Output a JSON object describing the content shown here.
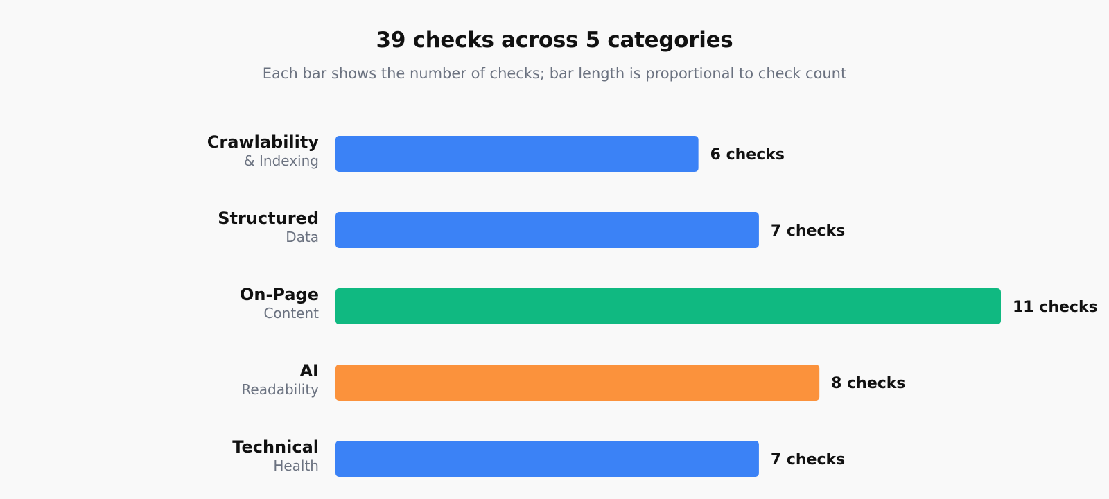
{
  "chart_data": {
    "type": "bar",
    "orientation": "horizontal",
    "title": "39 checks across 5 categories",
    "subtitle": "Each bar shows the number of checks; bar length is proportional to check count",
    "categories": [
      {
        "label": "Crawlability",
        "sublabel": "& Indexing",
        "value": 6,
        "value_label": "6 checks",
        "color": "#3b82f6"
      },
      {
        "label": "Structured",
        "sublabel": "Data",
        "value": 7,
        "value_label": "7 checks",
        "color": "#3b82f6"
      },
      {
        "label": "On-Page",
        "sublabel": "Content",
        "value": 11,
        "value_label": "11 checks",
        "color": "#10b981"
      },
      {
        "label": "AI",
        "sublabel": "Readability",
        "value": 8,
        "value_label": "8 checks",
        "color": "#fb923c"
      },
      {
        "label": "Technical",
        "sublabel": "Health",
        "value": 7,
        "value_label": "7 checks",
        "color": "#3b82f6"
      }
    ],
    "xlim": [
      0,
      11
    ],
    "grid": false,
    "legend": "none"
  }
}
